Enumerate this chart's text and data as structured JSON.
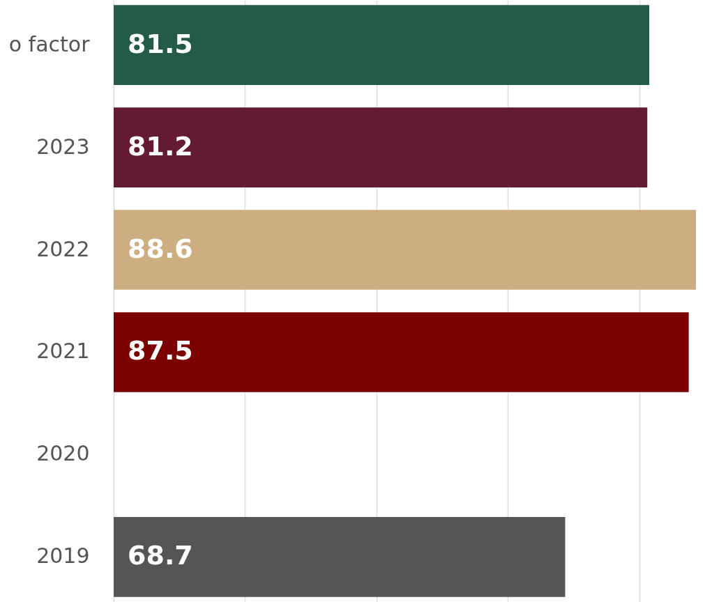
{
  "chart_data": {
    "type": "bar",
    "orientation": "horizontal",
    "categories": [
      "o factor",
      "2023",
      "2022",
      "2021",
      "2020",
      "2019"
    ],
    "values": [
      81.5,
      81.2,
      88.6,
      87.5,
      null,
      68.7
    ],
    "colors": [
      "#245a4a",
      "#641a30",
      "#cdae80",
      "#7b0000",
      "#9e9e9e",
      "#555555"
    ],
    "xlim": [
      0,
      88.6
    ],
    "xticks": [
      {
        "value": 0,
        "label": null
      },
      {
        "value": 20,
        "label": null
      },
      {
        "value": 40,
        "label": null
      },
      {
        "value": 60,
        "label": null
      },
      {
        "value": 80,
        "label": null
      }
    ],
    "grid": "x",
    "tick_labels": "y",
    "data_labels": true
  }
}
